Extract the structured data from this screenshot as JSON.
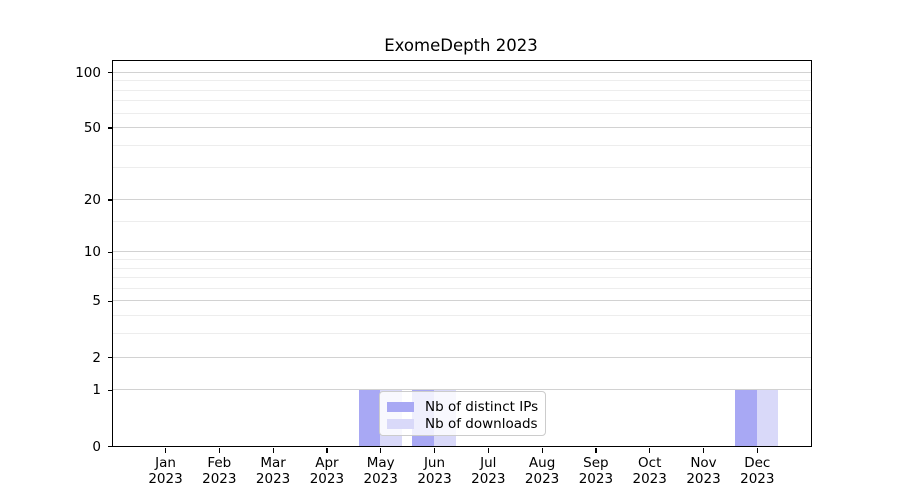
{
  "chart_data": {
    "type": "bar",
    "title": "ExomeDepth 2023",
    "categories": [
      "Jan",
      "Feb",
      "Mar",
      "Apr",
      "May",
      "Jun",
      "Jul",
      "Aug",
      "Sep",
      "Oct",
      "Nov",
      "Dec"
    ],
    "category_year": "2023",
    "series": [
      {
        "name": "Nb of distinct IPs",
        "color": "#a8a8f4",
        "values": [
          0,
          0,
          0,
          0,
          1,
          1,
          0,
          0,
          0,
          0,
          0,
          1
        ]
      },
      {
        "name": "Nb of downloads",
        "color": "#d9d9f9",
        "values": [
          0,
          0,
          0,
          0,
          1,
          1,
          0,
          0,
          0,
          0,
          0,
          1
        ]
      }
    ],
    "xlabel": "",
    "ylabel": "",
    "yscale": "log1p",
    "ylim": [
      0,
      115
    ],
    "yticks": [
      0,
      1,
      2,
      5,
      10,
      20,
      50,
      100
    ],
    "yticks_minor": [
      3,
      4,
      6,
      7,
      8,
      9,
      15,
      30,
      40,
      60,
      70,
      80,
      90
    ],
    "grid": "horizontal",
    "legend_position": "inside-bottom-center"
  },
  "colors": {
    "major_grid": "#d2d2d2",
    "minor_grid": "#ededed",
    "spine": "#000000",
    "text": "#000000",
    "legend_border": "#cccccc",
    "legend_bg": "rgba(255,255,255,0.82)"
  }
}
